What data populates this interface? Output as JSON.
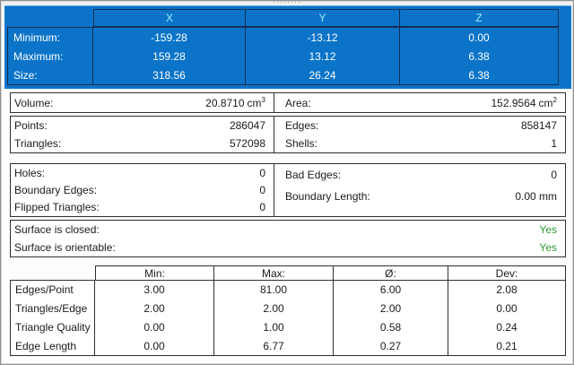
{
  "window": {
    "drag_handle_dots": "········"
  },
  "colors": {
    "selection_blue": "#0b74c9",
    "selection_border": "#132e52",
    "selection_header_text": "#a8e7fa",
    "box_border": "#2f2f2f",
    "yes_green": "#339933"
  },
  "bbox_table": {
    "headers": [
      "X",
      "Y",
      "Z"
    ],
    "rows": [
      {
        "label": "Minimum:",
        "x": "-159.28",
        "y": "-13.12",
        "z": "0.00"
      },
      {
        "label": "Maximum:",
        "x": "159.28",
        "y": "13.12",
        "z": "6.38"
      },
      {
        "label": "Size:",
        "x": "318.56",
        "y": "26.24",
        "z": "6.38"
      }
    ]
  },
  "metrics": {
    "volume": {
      "label": "Volume:",
      "value": "20.8710",
      "unit": "cm",
      "unit_exp": "3"
    },
    "area": {
      "label": "Area:",
      "value": "152.9564",
      "unit": "cm",
      "unit_exp": "2"
    },
    "points": {
      "label": "Points:",
      "value": "286047"
    },
    "edges": {
      "label": "Edges:",
      "value": "858147"
    },
    "triangles": {
      "label": "Triangles:",
      "value": "572098"
    },
    "shells": {
      "label": "Shells:",
      "value": "1"
    },
    "holes": {
      "label": "Holes:",
      "value": "0"
    },
    "bad_edges": {
      "label": "Bad Edges:",
      "value": "0"
    },
    "boundary_edges": {
      "label": "Boundary Edges:",
      "value": "0"
    },
    "boundary_length": {
      "label": "Boundary Length:",
      "value": "0.00 mm"
    },
    "flipped_triangles": {
      "label": "Flipped Triangles:",
      "value": "0"
    }
  },
  "surface": {
    "closed": {
      "label": "Surface is closed:",
      "value": "Yes"
    },
    "orientable": {
      "label": "Surface is orientable:",
      "value": "Yes"
    }
  },
  "stats_table": {
    "headers": [
      "Min:",
      "Max:",
      "Ø:",
      "Dev:"
    ],
    "rows": [
      {
        "label": "Edges/Point",
        "min": "3.00",
        "max": "81.00",
        "avg": "6.00",
        "dev": "2.08"
      },
      {
        "label": "Triangles/Edge",
        "min": "2.00",
        "max": "2.00",
        "avg": "2.00",
        "dev": "0.00"
      },
      {
        "label": "Triangle Quality",
        "min": "0.00",
        "max": "1.00",
        "avg": "0.58",
        "dev": "0.24"
      },
      {
        "label": "Edge Length",
        "min": "0.00",
        "max": "6.77",
        "avg": "0.27",
        "dev": "0.21"
      }
    ]
  }
}
